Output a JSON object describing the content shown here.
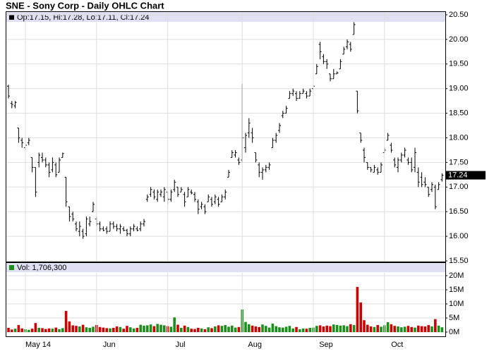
{
  "chart_data": [
    {
      "type": "ohlc",
      "title": "SNE - Sony Corp - Daily OHLC Chart",
      "legend": "Op:17.15, Hi:17.28, Lo:17.11, Cl:17.24",
      "color": "#000000",
      "last_label": "17.24",
      "ylim": [
        15.5,
        20.5
      ],
      "yticks": [
        {
          "value": 15.5,
          "label": "15.50"
        },
        {
          "value": 16,
          "label": "16.00"
        },
        {
          "value": 16.5,
          "label": "16.50"
        },
        {
          "value": 17,
          "label": "17.00"
        },
        {
          "value": 17.5,
          "label": "17.50"
        },
        {
          "value": 18,
          "label": "18.00"
        },
        {
          "value": 18.5,
          "label": "18.50"
        },
        {
          "value": 19,
          "label": "19.00"
        },
        {
          "value": 19.5,
          "label": "19.50"
        },
        {
          "value": 20,
          "label": "20.00"
        },
        {
          "value": 20.5,
          "label": "20.50"
        }
      ],
      "grid": true,
      "ohlc": [
        [
          19.05,
          19.08,
          18.8,
          18.85
        ],
        [
          18.7,
          18.75,
          18.6,
          18.68
        ],
        [
          18.65,
          18.75,
          18.6,
          18.72
        ],
        [
          18.2,
          18.2,
          17.9,
          18.0
        ],
        [
          17.95,
          18.0,
          17.8,
          17.9
        ],
        [
          17.8,
          18.0,
          17.7,
          17.85
        ],
        [
          17.9,
          18.0,
          17.85,
          17.95
        ],
        [
          17.6,
          17.6,
          17.3,
          17.4
        ],
        [
          17.4,
          17.4,
          16.8,
          16.9
        ],
        [
          17.5,
          17.7,
          17.4,
          17.65
        ],
        [
          17.6,
          17.7,
          17.5,
          17.55
        ],
        [
          17.55,
          17.6,
          17.4,
          17.45
        ],
        [
          17.45,
          17.5,
          17.2,
          17.3
        ],
        [
          17.35,
          17.6,
          17.3,
          17.5
        ],
        [
          17.45,
          17.5,
          17.2,
          17.25
        ],
        [
          17.3,
          17.6,
          17.3,
          17.55
        ],
        [
          17.6,
          17.7,
          17.6,
          17.68
        ],
        [
          17.2,
          17.2,
          16.6,
          16.7
        ],
        [
          16.6,
          16.6,
          16.3,
          16.4
        ],
        [
          16.45,
          16.5,
          16.3,
          16.35
        ],
        [
          16.25,
          16.3,
          16.1,
          16.15
        ],
        [
          16.1,
          16.3,
          16.0,
          16.2
        ],
        [
          16.1,
          16.15,
          15.95,
          16.0
        ],
        [
          16.05,
          16.4,
          16.0,
          16.35
        ],
        [
          16.25,
          16.4,
          16.2,
          16.3
        ],
        [
          16.5,
          16.7,
          16.5,
          16.65
        ],
        [
          16.35,
          16.4,
          16.2,
          16.25
        ],
        [
          16.25,
          16.3,
          16.1,
          16.15
        ],
        [
          16.15,
          16.2,
          16.1,
          16.12
        ],
        [
          16.15,
          16.2,
          16.05,
          16.1
        ],
        [
          16.1,
          16.3,
          16.1,
          16.25
        ],
        [
          16.25,
          16.3,
          16.15,
          16.2
        ],
        [
          16.2,
          16.25,
          16.1,
          16.15
        ],
        [
          16.15,
          16.25,
          16.05,
          16.2
        ],
        [
          16.15,
          16.2,
          16.1,
          16.12
        ],
        [
          16.12,
          16.15,
          16.0,
          16.05
        ],
        [
          16.05,
          16.2,
          16.0,
          16.15
        ],
        [
          16.15,
          16.25,
          16.1,
          16.2
        ],
        [
          16.15,
          16.2,
          16.1,
          16.12
        ],
        [
          16.15,
          16.3,
          16.1,
          16.25
        ],
        [
          16.25,
          16.35,
          16.2,
          16.3
        ],
        [
          16.75,
          16.85,
          16.7,
          16.8
        ],
        [
          16.85,
          17.0,
          16.8,
          16.95
        ],
        [
          16.9,
          16.95,
          16.75,
          16.8
        ],
        [
          16.75,
          16.95,
          16.7,
          16.9
        ],
        [
          16.85,
          16.95,
          16.8,
          16.9
        ],
        [
          16.8,
          17.0,
          16.7,
          16.95
        ],
        [
          16.9,
          16.9,
          16.65,
          16.75
        ],
        [
          16.75,
          16.95,
          16.7,
          16.9
        ],
        [
          16.95,
          17.15,
          16.9,
          17.1
        ],
        [
          17.0,
          17.0,
          16.8,
          16.85
        ],
        [
          16.9,
          17.0,
          16.9,
          16.95
        ],
        [
          16.85,
          16.9,
          16.6,
          16.7
        ],
        [
          16.8,
          17.0,
          16.8,
          16.95
        ],
        [
          16.9,
          16.95,
          16.85,
          16.88
        ],
        [
          16.85,
          16.9,
          16.7,
          16.75
        ],
        [
          16.7,
          16.75,
          16.45,
          16.55
        ],
        [
          16.6,
          16.7,
          16.55,
          16.65
        ],
        [
          16.6,
          16.65,
          16.45,
          16.5
        ],
        [
          16.7,
          16.85,
          16.7,
          16.8
        ],
        [
          16.75,
          16.8,
          16.6,
          16.65
        ],
        [
          16.7,
          16.85,
          16.65,
          16.8
        ],
        [
          16.75,
          16.8,
          16.6,
          16.65
        ],
        [
          16.7,
          16.85,
          16.7,
          16.8
        ],
        [
          16.8,
          16.95,
          16.75,
          16.9
        ],
        [
          17.2,
          17.35,
          17.2,
          17.3
        ],
        [
          17.6,
          17.75,
          17.6,
          17.7
        ],
        [
          17.65,
          17.75,
          17.6,
          17.7
        ],
        [
          17.55,
          17.6,
          17.45,
          17.5
        ],
        [
          17.55,
          19.1,
          17.5,
          18.0
        ],
        [
          17.8,
          18.1,
          17.7,
          18.05
        ],
        [
          18.1,
          18.4,
          18.0,
          18.3
        ],
        [
          18.1,
          18.2,
          17.9,
          18.0
        ],
        [
          17.7,
          17.7,
          17.5,
          17.55
        ],
        [
          17.45,
          17.5,
          17.2,
          17.3
        ],
        [
          17.3,
          17.4,
          17.15,
          17.35
        ],
        [
          17.35,
          17.45,
          17.3,
          17.4
        ],
        [
          17.4,
          17.5,
          17.35,
          17.45
        ],
        [
          17.8,
          18.0,
          17.8,
          17.95
        ],
        [
          17.95,
          18.1,
          17.9,
          18.05
        ],
        [
          18.15,
          18.3,
          18.1,
          18.25
        ],
        [
          18.45,
          18.55,
          18.4,
          18.5
        ],
        [
          18.5,
          18.65,
          18.5,
          18.6
        ],
        [
          18.8,
          18.95,
          18.8,
          18.9
        ],
        [
          18.9,
          19.0,
          18.85,
          18.95
        ],
        [
          18.9,
          18.95,
          18.75,
          18.8
        ],
        [
          18.8,
          18.95,
          18.8,
          18.9
        ],
        [
          18.9,
          19.0,
          18.9,
          18.95
        ],
        [
          18.9,
          18.95,
          18.8,
          18.85
        ],
        [
          18.85,
          19.0,
          18.85,
          18.95
        ],
        [
          19.0,
          19.1,
          19.0,
          19.05
        ],
        [
          19.3,
          19.5,
          19.3,
          19.45
        ],
        [
          19.9,
          19.95,
          19.6,
          19.75
        ],
        [
          19.65,
          19.7,
          19.5,
          19.55
        ],
        [
          19.55,
          19.6,
          19.4,
          19.5
        ],
        [
          19.3,
          19.3,
          19.15,
          19.2
        ],
        [
          19.2,
          19.4,
          19.2,
          19.3
        ],
        [
          19.3,
          19.35,
          19.3,
          19.32
        ],
        [
          19.4,
          19.6,
          19.4,
          19.55
        ],
        [
          19.7,
          19.85,
          19.7,
          19.8
        ],
        [
          19.85,
          20.0,
          19.8,
          19.95
        ],
        [
          19.9,
          19.95,
          19.75,
          19.8
        ],
        [
          20.1,
          20.35,
          20.1,
          20.3
        ],
        [
          18.95,
          18.95,
          18.5,
          18.55
        ],
        [
          18.1,
          18.1,
          17.9,
          17.95
        ],
        [
          17.75,
          17.8,
          17.5,
          17.6
        ],
        [
          17.5,
          17.5,
          17.35,
          17.4
        ],
        [
          17.4,
          17.4,
          17.3,
          17.35
        ],
        [
          17.3,
          17.45,
          17.3,
          17.4
        ],
        [
          17.35,
          17.4,
          17.25,
          17.3
        ],
        [
          17.3,
          17.5,
          17.3,
          17.45
        ],
        [
          17.7,
          17.8,
          17.7,
          17.75
        ],
        [
          17.95,
          18.1,
          17.95,
          18.05
        ],
        [
          17.85,
          17.9,
          17.7,
          17.75
        ],
        [
          17.55,
          17.6,
          17.4,
          17.45
        ],
        [
          17.4,
          17.6,
          17.3,
          17.55
        ],
        [
          17.55,
          17.7,
          17.5,
          17.65
        ],
        [
          17.65,
          17.8,
          17.6,
          17.75
        ],
        [
          17.55,
          17.6,
          17.45,
          17.5
        ],
        [
          17.5,
          17.6,
          17.3,
          17.35
        ],
        [
          17.4,
          17.8,
          17.3,
          17.7
        ],
        [
          17.3,
          17.4,
          17.0,
          17.1
        ],
        [
          17.2,
          17.3,
          17.0,
          17.05
        ],
        [
          17.1,
          17.2,
          17.0,
          17.05
        ],
        [
          17.0,
          17.0,
          16.8,
          16.85
        ],
        [
          16.95,
          17.1,
          16.9,
          17.05
        ],
        [
          17.0,
          17.05,
          16.55,
          16.6
        ],
        [
          16.95,
          17.1,
          16.95,
          17.05
        ],
        [
          17.15,
          17.28,
          17.11,
          17.24
        ]
      ]
    },
    {
      "type": "volume",
      "legend": "Vol: 1,706,300",
      "up_color": "#1a8f1a",
      "down_color": "#cc0000",
      "ylim": [
        0,
        20000000
      ],
      "yticks": [
        {
          "value": 0,
          "label": "0M"
        },
        {
          "value": 5000000,
          "label": "5M"
        },
        {
          "value": 10000000,
          "label": "10M"
        },
        {
          "value": 15000000,
          "label": "15M"
        },
        {
          "value": 20000000,
          "label": "20M"
        }
      ],
      "categories": [
        null,
        null,
        null,
        null,
        null,
        "May 14",
        null,
        null,
        null,
        null,
        null,
        null,
        null,
        null,
        null,
        null,
        null,
        null,
        null,
        null,
        null,
        null,
        null,
        null,
        null,
        null,
        "Jun",
        null,
        null,
        null,
        null,
        null,
        null,
        null,
        null,
        null,
        null,
        null,
        null,
        null,
        null,
        null,
        null,
        null,
        null,
        null,
        null,
        "Jul",
        null,
        null,
        null,
        null,
        null,
        null,
        null,
        null,
        null,
        null,
        null,
        null,
        null,
        null,
        null,
        null,
        null,
        null,
        null,
        null,
        null,
        "Aug",
        null,
        null,
        null,
        null,
        null,
        null,
        null,
        null,
        null,
        null,
        null,
        null,
        null,
        null,
        null,
        null,
        null,
        null,
        null,
        null,
        "Sep",
        null,
        null,
        null,
        null,
        null,
        null,
        null,
        null,
        null,
        null,
        null,
        null,
        null,
        null,
        null,
        null,
        null,
        null,
        null,
        null,
        "Oct",
        null,
        null,
        null,
        null,
        null,
        null,
        null,
        null,
        null,
        null,
        null,
        null,
        null,
        null,
        null,
        null,
        null
      ],
      "values": [
        1500000,
        900000,
        1200000,
        2500000,
        1300000,
        1000000,
        800000,
        1200000,
        3200000,
        1500000,
        1400000,
        1100000,
        1300000,
        1200000,
        1600000,
        1000000,
        1400000,
        7500000,
        3800000,
        2400000,
        2200000,
        2000000,
        2600000,
        1700000,
        1500000,
        1900000,
        2500000,
        1800000,
        1600000,
        1400000,
        1300000,
        1500000,
        2000000,
        1800000,
        1200000,
        2200000,
        1700000,
        1300000,
        1500000,
        2600000,
        2300000,
        2400000,
        2700000,
        2100000,
        2900000,
        2600000,
        2400000,
        2100000,
        1900000,
        5200000,
        2600000,
        1500000,
        2300000,
        1800000,
        1200000,
        1100000,
        1500000,
        1300000,
        1000000,
        1700000,
        1400000,
        2000000,
        2400000,
        2200000,
        2500000,
        1900000,
        2300000,
        1600000,
        1800000,
        8000000,
        3600000,
        2800000,
        2300000,
        2000000,
        1800000,
        2700000,
        2200000,
        1600000,
        3000000,
        2100000,
        1700000,
        1600000,
        1900000,
        2200000,
        1300000,
        1800000,
        1000000,
        1300000,
        1200000,
        1500000,
        1600000,
        2200000,
        2400000,
        2000000,
        2300000,
        2100000,
        2700000,
        2500000,
        2300000,
        2400000,
        2100000,
        2800000,
        2500000,
        16000000,
        10500000,
        4200000,
        2600000,
        2000000,
        1800000,
        2500000,
        1900000,
        2400000,
        3500000,
        2800000,
        2200000,
        2000000,
        1700000,
        1900000,
        2200000,
        1800000,
        1600000,
        2300000,
        2100000,
        2000000,
        2500000,
        2000000,
        4600000,
        2300000,
        1706300
      ]
    }
  ]
}
